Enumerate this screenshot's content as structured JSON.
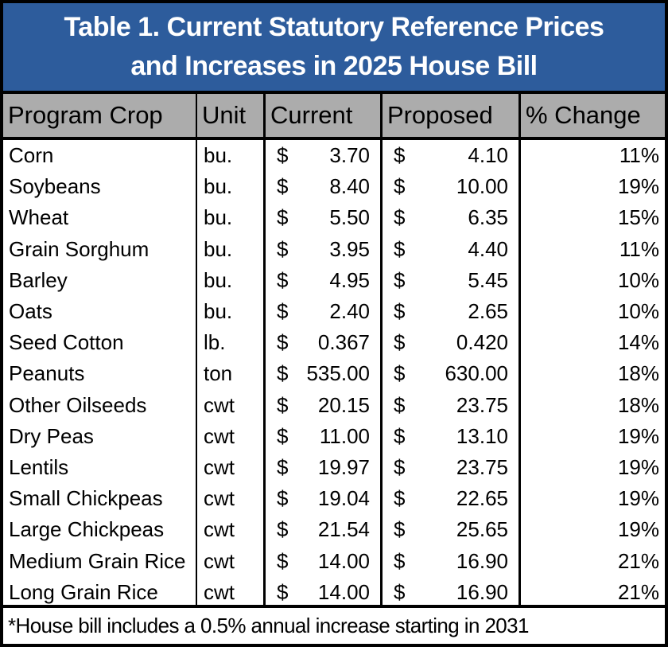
{
  "title": {
    "line1": "Table 1. Current Statutory Reference Prices",
    "line2": "and Increases in 2025 House Bill"
  },
  "header": {
    "program_crop": "Program Crop",
    "unit": "Unit",
    "current": "Current",
    "proposed": "Proposed",
    "change": "% Change"
  },
  "currency_symbol": "$",
  "rows": [
    {
      "crop": "Corn",
      "unit": "bu.",
      "current": "3.70",
      "proposed": "4.10",
      "change": "11%"
    },
    {
      "crop": "Soybeans",
      "unit": "bu.",
      "current": "8.40",
      "proposed": "10.00",
      "change": "19%"
    },
    {
      "crop": "Wheat",
      "unit": "bu.",
      "current": "5.50",
      "proposed": "6.35",
      "change": "15%"
    },
    {
      "crop": "Grain Sorghum",
      "unit": "bu.",
      "current": "3.95",
      "proposed": "4.40",
      "change": "11%"
    },
    {
      "crop": "Barley",
      "unit": "bu.",
      "current": "4.95",
      "proposed": "5.45",
      "change": "10%"
    },
    {
      "crop": "Oats",
      "unit": "bu.",
      "current": "2.40",
      "proposed": "2.65",
      "change": "10%"
    },
    {
      "crop": "Seed Cotton",
      "unit": "lb.",
      "current": "0.367",
      "proposed": "0.420",
      "change": "14%"
    },
    {
      "crop": "Peanuts",
      "unit": "ton",
      "current": "535.00",
      "proposed": "630.00",
      "change": "18%"
    },
    {
      "crop": "Other Oilseeds",
      "unit": "cwt",
      "current": "20.15",
      "proposed": "23.75",
      "change": "18%"
    },
    {
      "crop": "Dry Peas",
      "unit": "cwt",
      "current": "11.00",
      "proposed": "13.10",
      "change": "19%"
    },
    {
      "crop": "Lentils",
      "unit": "cwt",
      "current": "19.97",
      "proposed": "23.75",
      "change": "19%"
    },
    {
      "crop": "Small Chickpeas",
      "unit": "cwt",
      "current": "19.04",
      "proposed": "22.65",
      "change": "19%"
    },
    {
      "crop": "Large Chickpeas",
      "unit": "cwt",
      "current": "21.54",
      "proposed": "25.65",
      "change": "19%"
    },
    {
      "crop": "Medium Grain Rice",
      "unit": "cwt",
      "current": "14.00",
      "proposed": "16.90",
      "change": "21%"
    },
    {
      "crop": "Long Grain Rice",
      "unit": "cwt",
      "current": "14.00",
      "proposed": "16.90",
      "change": "21%"
    }
  ],
  "footnote": "*House bill includes a 0.5% annual increase starting in 2031",
  "colors": {
    "title_bg": "#2D5C9C",
    "header_bg": "#ACACAC",
    "border": "#000000",
    "title_text": "#FFFFFF",
    "body_bg": "#FFFFFF"
  },
  "chart_data": {
    "type": "table",
    "title": "Table 1. Current Statutory Reference Prices and Increases in 2025 House Bill",
    "columns": [
      "Program Crop",
      "Unit",
      "Current",
      "Proposed",
      "% Change"
    ],
    "rows": [
      [
        "Corn",
        "bu.",
        3.7,
        4.1,
        "11%"
      ],
      [
        "Soybeans",
        "bu.",
        8.4,
        10.0,
        "19%"
      ],
      [
        "Wheat",
        "bu.",
        5.5,
        6.35,
        "15%"
      ],
      [
        "Grain Sorghum",
        "bu.",
        3.95,
        4.4,
        "11%"
      ],
      [
        "Barley",
        "bu.",
        4.95,
        5.45,
        "10%"
      ],
      [
        "Oats",
        "bu.",
        2.4,
        2.65,
        "10%"
      ],
      [
        "Seed Cotton",
        "lb.",
        0.367,
        0.42,
        "14%"
      ],
      [
        "Peanuts",
        "ton",
        535.0,
        630.0,
        "18%"
      ],
      [
        "Other Oilseeds",
        "cwt",
        20.15,
        23.75,
        "18%"
      ],
      [
        "Dry Peas",
        "cwt",
        11.0,
        13.1,
        "19%"
      ],
      [
        "Lentils",
        "cwt",
        19.97,
        23.75,
        "19%"
      ],
      [
        "Small Chickpeas",
        "cwt",
        19.04,
        22.65,
        "19%"
      ],
      [
        "Large Chickpeas",
        "cwt",
        21.54,
        25.65,
        "19%"
      ],
      [
        "Medium Grain Rice",
        "cwt",
        14.0,
        16.9,
        "21%"
      ],
      [
        "Long Grain Rice",
        "cwt",
        14.0,
        16.9,
        "21%"
      ]
    ],
    "footnote": "*House bill includes a 0.5% annual increase starting in 2031"
  }
}
